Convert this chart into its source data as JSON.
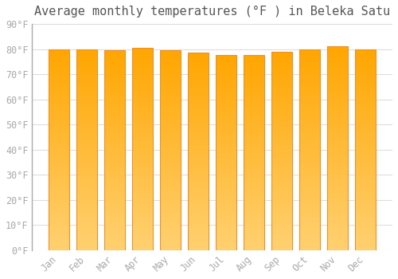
{
  "title": "Average monthly temperatures (°F ) in Beleka Satu",
  "months": [
    "Jan",
    "Feb",
    "Mar",
    "Apr",
    "May",
    "Jun",
    "Jul",
    "Aug",
    "Sep",
    "Oct",
    "Nov",
    "Dec"
  ],
  "values": [
    80,
    80,
    79.5,
    80.5,
    79.5,
    78.5,
    77.5,
    77.5,
    79,
    80,
    81,
    80
  ],
  "bar_color_top": "#FFA500",
  "bar_color_bottom": "#FFD070",
  "bar_edge_color": "#E8922A",
  "background_color": "#FFFFFF",
  "grid_color": "#DDDDDD",
  "tick_label_color": "#AAAAAA",
  "title_color": "#555555",
  "ylim": [
    0,
    90
  ],
  "yticks": [
    0,
    10,
    20,
    30,
    40,
    50,
    60,
    70,
    80,
    90
  ],
  "ytick_labels": [
    "0°F",
    "10°F",
    "20°F",
    "30°F",
    "40°F",
    "50°F",
    "60°F",
    "70°F",
    "80°F",
    "90°F"
  ],
  "title_fontsize": 11,
  "tick_fontsize": 8.5
}
